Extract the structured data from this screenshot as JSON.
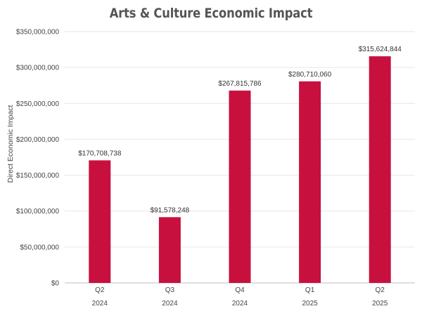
{
  "chart_data": {
    "type": "bar",
    "title": "Arts & Culture Economic Impact",
    "xlabel": "",
    "ylabel": "Direct Economic Impact",
    "categories": [
      [
        "Q2",
        "2024"
      ],
      [
        "Q3",
        "2024"
      ],
      [
        "Q4",
        "2024"
      ],
      [
        "Q1",
        "2025"
      ],
      [
        "Q2",
        "2025"
      ]
    ],
    "values": [
      170708738,
      91578248,
      267815786,
      280710060,
      315624844
    ],
    "data_labels": [
      "$170,708,738",
      "$91,578,248",
      "$267,815,786",
      "$280,710,060",
      "$315,624,844"
    ],
    "ylim": [
      0,
      350000000
    ],
    "yticks": [
      0,
      50000000,
      100000000,
      150000000,
      200000000,
      250000000,
      300000000,
      350000000
    ],
    "ytick_labels": [
      "$0",
      "$50,000,000",
      "$100,000,000",
      "$150,000,000",
      "$200,000,000",
      "$250,000,000",
      "$300,000,000",
      "$350,000,000"
    ],
    "grid": true,
    "legend": "none",
    "colors": {
      "bar": "#c8103e",
      "grid": "#e6e6e6",
      "axis": "#bfbfbf"
    }
  }
}
